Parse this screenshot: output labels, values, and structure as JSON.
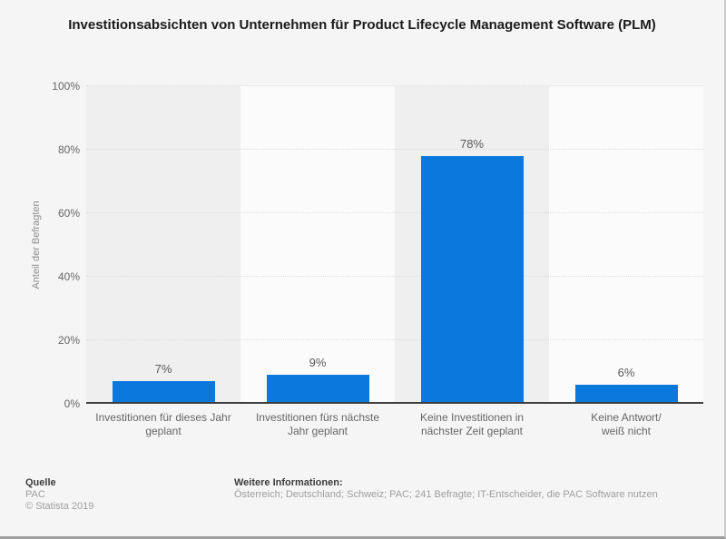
{
  "chart_data": {
    "type": "bar",
    "title": "Investitionsabsichten von Unternehmen für Product Lifecycle Management Software (PLM)",
    "xlabel": "",
    "ylabel": "Anteil der Befragten",
    "categories": [
      "Investitionen für dieses Jahr geplant",
      "Investitionen fürs nächste Jahr geplant",
      "Keine Investitionen in nächster Zeit geplant",
      "Keine Antwort/ weiß nicht"
    ],
    "category_lines": [
      [
        "Investitionen für dieses Jahr",
        "geplant"
      ],
      [
        "Investitionen fürs nächste",
        "Jahr geplant"
      ],
      [
        "Keine Investitionen in",
        "nächster Zeit geplant"
      ],
      [
        "Keine Antwort/",
        "weiß nicht"
      ]
    ],
    "values": [
      7,
      9,
      78,
      6
    ],
    "value_labels": [
      "7%",
      "9%",
      "78%",
      "6%"
    ],
    "ylim": [
      0,
      100
    ],
    "yticks": [
      "0%",
      "20%",
      "40%",
      "60%",
      "80%",
      "100%"
    ],
    "grid": "horizontal-dotted",
    "legend": "none"
  },
  "colors": {
    "bar": "#0a78dc",
    "band_odd": "#efefef",
    "band_even": "#fbfbfb",
    "gridline": "#dcdcdc",
    "axis_line": "#3f3f3f",
    "tick_text": "#666666",
    "value_text": "#595959",
    "axis_title_text": "#8c8c8c",
    "title_text": "#1a1a1a",
    "footer_head_text": "#3d3d3d",
    "footer_text": "#9e9e9e",
    "page_bg": "#f5f5f5"
  },
  "footer": {
    "source_label": "Quelle",
    "source_line1": "PAC",
    "source_line2": "© Statista 2019",
    "info_label": "Weitere Informationen:",
    "info_text": "Österreich; Deutschland; Schweiz; PAC; 241 Befragte; IT-Entscheider, die PAC Software nutzen"
  }
}
